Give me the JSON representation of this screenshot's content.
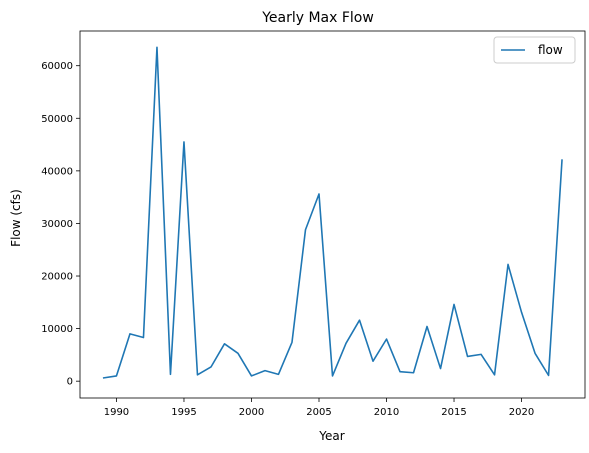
{
  "chart_data": {
    "type": "line",
    "title": "Yearly Max Flow",
    "xlabel": "Year",
    "ylabel": "Flow (cfs)",
    "xlim": [
      1987.3,
      2024.7
    ],
    "ylim": [
      -3200,
      66600
    ],
    "xticks": [
      1990,
      1995,
      2000,
      2005,
      2010,
      2015,
      2020
    ],
    "yticks": [
      0,
      10000,
      20000,
      30000,
      40000,
      50000,
      60000
    ],
    "grid": false,
    "legend_position": "top-right",
    "series": [
      {
        "name": "flow",
        "color": "#1f77b4",
        "x": [
          1989,
          1990,
          1991,
          1992,
          1993,
          1994,
          1995,
          1996,
          1997,
          1998,
          1999,
          2000,
          2001,
          2002,
          2003,
          2004,
          2005,
          2006,
          2007,
          2008,
          2009,
          2010,
          2011,
          2012,
          2013,
          2014,
          2015,
          2016,
          2017,
          2018,
          2019,
          2020,
          2021,
          2022,
          2023
        ],
        "y": [
          600,
          1000,
          9000,
          8300,
          63500,
          1300,
          45500,
          1200,
          2700,
          7100,
          5300,
          1000,
          2000,
          1300,
          7400,
          28800,
          35600,
          1000,
          7200,
          11600,
          3800,
          8000,
          1800,
          1600,
          10400,
          2400,
          14600,
          4700,
          5100,
          1200,
          22200,
          13100,
          5300,
          1100,
          42200
        ]
      }
    ]
  }
}
